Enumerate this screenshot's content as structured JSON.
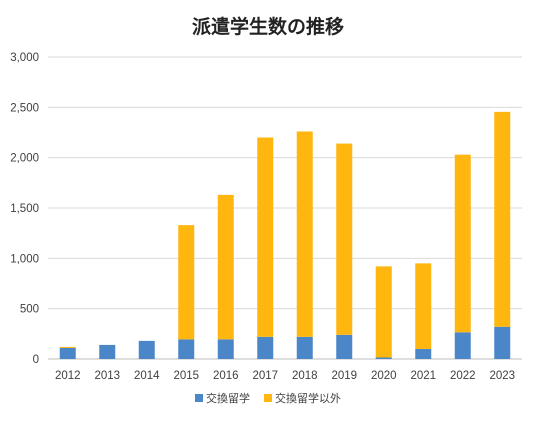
{
  "chart_data": {
    "type": "bar",
    "stacked": true,
    "title": "派遣学生数の推移",
    "xlabel": "",
    "ylabel": "",
    "categories": [
      "2012",
      "2013",
      "2014",
      "2015",
      "2016",
      "2017",
      "2018",
      "2019",
      "2020",
      "2021",
      "2022",
      "2023"
    ],
    "series": [
      {
        "name": "交換留学",
        "color": "#4a86c8",
        "values": [
          110,
          140,
          180,
          195,
          195,
          220,
          220,
          240,
          15,
          100,
          265,
          320
        ]
      },
      {
        "name": "交換留学以外",
        "color": "#ffb60f",
        "values": [
          10,
          0,
          0,
          1135,
          1435,
          1980,
          2040,
          1900,
          905,
          850,
          1765,
          2135
        ]
      }
    ],
    "ylim": [
      0,
      3000
    ],
    "yticks": [
      0,
      500,
      1000,
      1500,
      2000,
      2500,
      3000
    ],
    "ytick_labels": [
      "0",
      "500",
      "1,000",
      "1,500",
      "2,000",
      "2,500",
      "3,000"
    ],
    "grid": true,
    "legend_position": "bottom"
  }
}
